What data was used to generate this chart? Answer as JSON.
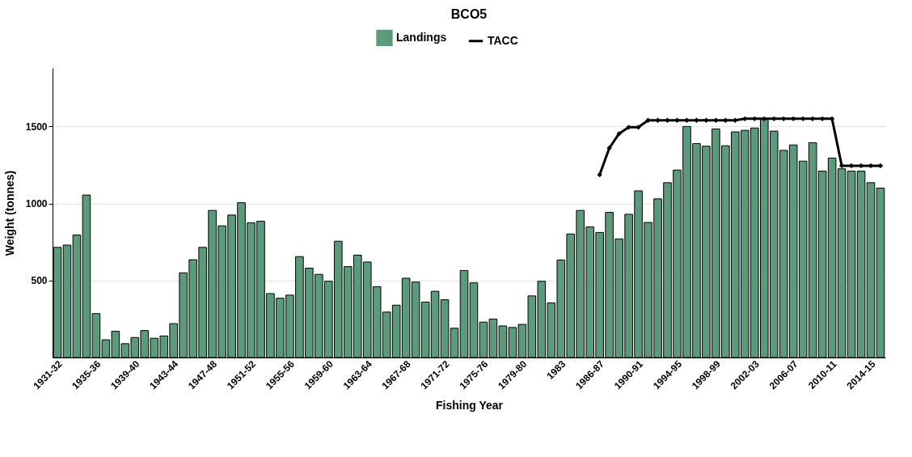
{
  "chart_data": {
    "type": "bar",
    "title": "BCO5",
    "xlabel": "Fishing Year",
    "ylabel": "Weight (tonnes)",
    "categories": [
      "1931-32",
      null,
      null,
      null,
      "1935-36",
      null,
      null,
      null,
      "1939-40",
      null,
      null,
      null,
      "1943-44",
      null,
      null,
      null,
      "1947-48",
      null,
      null,
      null,
      "1951-52",
      null,
      null,
      null,
      "1955-56",
      null,
      null,
      null,
      "1959-60",
      null,
      null,
      null,
      "1963-64",
      null,
      null,
      null,
      "1967-68",
      null,
      null,
      null,
      "1971-72",
      null,
      null,
      null,
      "1975-76",
      null,
      null,
      null,
      "1979-80",
      null,
      null,
      null,
      "1983",
      null,
      null,
      null,
      "1986-87",
      null,
      null,
      null,
      "1990-91",
      null,
      null,
      null,
      "1994-95",
      null,
      null,
      null,
      "1998-99",
      null,
      null,
      null,
      "2002-03",
      null,
      null,
      null,
      "2006-07",
      null,
      null,
      null,
      "2010-11",
      null,
      null,
      null,
      "2014-15",
      null
    ],
    "series": [
      {
        "name": "Landings",
        "color": "#5b9b7b",
        "values": [
          715,
          730,
          795,
          1055,
          285,
          115,
          170,
          90,
          130,
          175,
          125,
          140,
          220,
          550,
          635,
          715,
          955,
          855,
          925,
          1005,
          875,
          885,
          415,
          385,
          405,
          655,
          580,
          540,
          495,
          755,
          590,
          665,
          620,
          460,
          295,
          340,
          515,
          490,
          360,
          430,
          375,
          190,
          565,
          485,
          230,
          250,
          205,
          195,
          215,
          400,
          495,
          355,
          633,
          802,
          955,
          848,
          812,
          942,
          770,
          930,
          1082,
          877,
          1030,
          1135,
          1217,
          1500,
          1389,
          1372,
          1484,
          1375,
          1465,
          1475,
          1490,
          1550,
          1470,
          1345,
          1380,
          1275,
          1395,
          1210,
          1295,
          1225,
          1210,
          1210,
          1135,
          1100
        ]
      },
      {
        "name": "TACC",
        "type": "line",
        "color": "#000000",
        "marker": "diamond",
        "values": [
          null,
          null,
          null,
          null,
          null,
          null,
          null,
          null,
          null,
          null,
          null,
          null,
          null,
          null,
          null,
          null,
          null,
          null,
          null,
          null,
          null,
          null,
          null,
          null,
          null,
          null,
          null,
          null,
          null,
          null,
          null,
          null,
          null,
          null,
          null,
          null,
          null,
          null,
          null,
          null,
          null,
          null,
          null,
          null,
          null,
          null,
          null,
          null,
          null,
          null,
          null,
          null,
          null,
          null,
          null,
          null,
          1187,
          1360,
          1453,
          1495,
          1495,
          1540,
          1540,
          1540,
          1540,
          1540,
          1540,
          1540,
          1540,
          1540,
          1540,
          1550,
          1550,
          1550,
          1550,
          1550,
          1550,
          1550,
          1550,
          1550,
          1550,
          1245,
          1245,
          1245,
          1245,
          1245
        ]
      }
    ],
    "ylim": [
      0,
      1880
    ],
    "yticks": [
      500,
      1000,
      1500
    ],
    "grid": "y",
    "legend": "top"
  }
}
